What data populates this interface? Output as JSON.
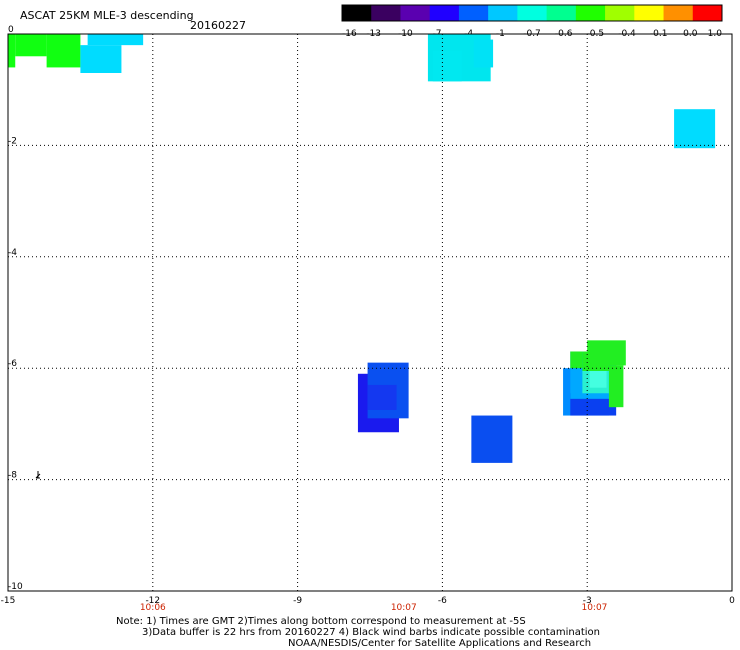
{
  "chart_data": {
    "type": "heatmap",
    "title": "ASCAT 25KM MLE-3 descending",
    "date": "20160227",
    "xlim": [
      -15,
      0
    ],
    "ylim": [
      -10,
      0
    ],
    "x_ticks": [
      "-15",
      "-12",
      "-9",
      "-6",
      "-3",
      "0"
    ],
    "y_ticks": [
      "0",
      "-2",
      "-4",
      "-6",
      "-8",
      "-10"
    ],
    "grid": true,
    "colorbar": {
      "tick_labels": [
        "-16",
        "-13",
        "-10",
        "-7",
        "-4",
        "-1",
        "-0.7",
        "-0.6",
        "-0.5",
        "-0.4",
        "-0.1",
        "0.0",
        "1.0"
      ],
      "colors": [
        "#000000",
        "#3a0060",
        "#5a00b0",
        "#2000ff",
        "#0060ff",
        "#00c8ff",
        "#00ffe0",
        "#00ff90",
        "#20ff00",
        "#a0ff00",
        "#ffff00",
        "#ff9000",
        "#ff0000"
      ]
    },
    "cells": [
      {
        "x0": -15.0,
        "x1": -14.85,
        "y0": -0.6,
        "y1": 0,
        "color": "#11ff11"
      },
      {
        "x0": -14.85,
        "x1": -14.2,
        "y0": -0.4,
        "y1": 0,
        "color": "#11ff11"
      },
      {
        "x0": -14.2,
        "x1": -13.5,
        "y0": -0.6,
        "y1": 0,
        "color": "#11ff11"
      },
      {
        "x0": -13.35,
        "x1": -12.2,
        "y0": -0.2,
        "y1": 0,
        "color": "#00dcff"
      },
      {
        "x0": -13.5,
        "x1": -12.65,
        "y0": -0.7,
        "y1": -0.2,
        "color": "#00dcff"
      },
      {
        "x0": -6.3,
        "x1": -5.0,
        "y0": -0.85,
        "y1": 0,
        "color": "#00e6ee"
      },
      {
        "x0": -5.35,
        "x1": -4.95,
        "y0": -0.6,
        "y1": -0.1,
        "color": "#00e2f6"
      },
      {
        "x0": -6.2,
        "x1": -5.6,
        "y0": -0.85,
        "y1": -0.3,
        "color": "#00e8f0"
      },
      {
        "x0": -1.2,
        "x1": -0.35,
        "y0": -2.05,
        "y1": -1.35,
        "color": "#00dcff"
      },
      {
        "x0": -7.75,
        "x1": -6.9,
        "y0": -7.15,
        "y1": -6.1,
        "color": "#1a1aee"
      },
      {
        "x0": -7.55,
        "x1": -6.7,
        "y0": -6.9,
        "y1": -5.9,
        "color": "#0a50f0"
      },
      {
        "x0": -7.55,
        "x1": -6.95,
        "y0": -6.75,
        "y1": -6.3,
        "color": "#1438f0"
      },
      {
        "x0": -5.4,
        "x1": -4.55,
        "y0": -7.7,
        "y1": -6.85,
        "color": "#0a4ef0"
      },
      {
        "x0": -3.5,
        "x1": -2.55,
        "y0": -6.85,
        "y1": -6.0,
        "color": "#008cff"
      },
      {
        "x0": -3.35,
        "x1": -2.4,
        "y0": -6.85,
        "y1": -6.45,
        "color": "#0a40f0"
      },
      {
        "x0": -3.35,
        "x1": -2.4,
        "y0": -6.55,
        "y1": -5.7,
        "color": "#00a8ff"
      },
      {
        "x0": -3.1,
        "x1": -2.55,
        "y0": -6.45,
        "y1": -6.05,
        "color": "#2af0d0"
      },
      {
        "x0": -3.1,
        "x1": -2.55,
        "y0": -6.05,
        "y1": -5.7,
        "color": "#22ee22"
      },
      {
        "x0": -3.35,
        "x1": -3.1,
        "y0": -6.0,
        "y1": -5.7,
        "color": "#22ee22"
      },
      {
        "x0": -3.0,
        "x1": -2.2,
        "y0": -5.95,
        "y1": -5.5,
        "color": "#22ee22"
      },
      {
        "x0": -2.55,
        "x1": -2.25,
        "y0": -6.7,
        "y1": -5.95,
        "color": "#22ee22"
      },
      {
        "x0": -2.95,
        "x1": -2.6,
        "y0": -6.35,
        "y1": -6.05,
        "color": "#44ffe0"
      }
    ],
    "time_labels": [
      {
        "x": -12.0,
        "text": "10:06"
      },
      {
        "x": -6.8,
        "text": "10:07"
      },
      {
        "x": -2.85,
        "text": "10:07"
      }
    ],
    "note_lines": [
      "Note: 1) Times are GMT 2)Times along bottom correspond to measurement at -5S",
      "3)Data buffer is 22 hrs from 20160227 4) Black wind barbs indicate possible contamination",
      "NOAA/NESDIS/Center for Satellite Applications and Research"
    ]
  }
}
